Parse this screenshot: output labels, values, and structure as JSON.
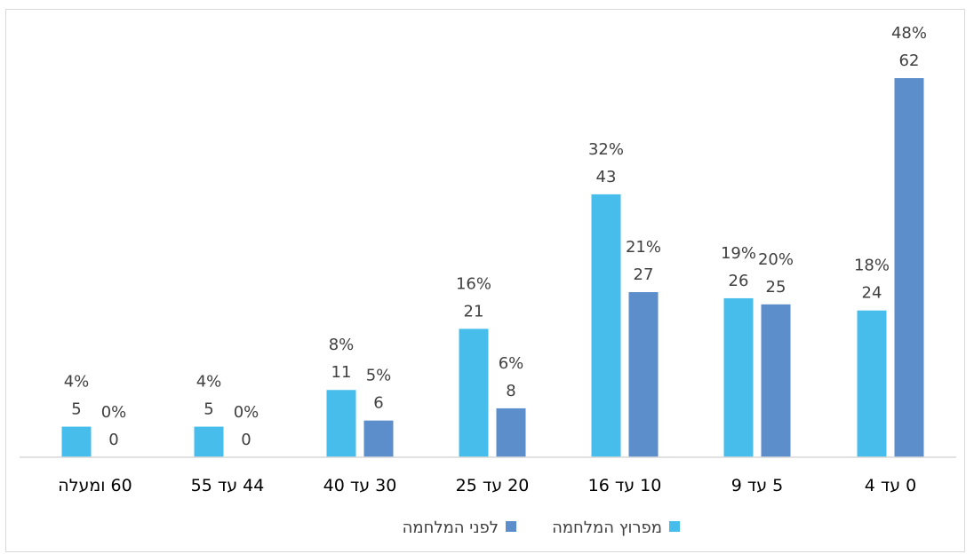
{
  "chart_data": {
    "type": "bar",
    "direction": "rtl",
    "categories": [
      "0 עד 4",
      "5 עד 9",
      "10 עד 16",
      "20 עד 25",
      "30 עד 40",
      "44 עד 55",
      "60 ומעלה"
    ],
    "series": [
      {
        "name": "לפני המלחמה",
        "color": "#5B8ECB",
        "values": [
          62,
          25,
          27,
          8,
          6,
          0,
          0
        ],
        "percent_labels": [
          "48%",
          "20%",
          "21%",
          "6%",
          "5%",
          "0%",
          "0%"
        ]
      },
      {
        "name": "מפרוץ המלחמה",
        "color": "#47BDEC",
        "values": [
          24,
          26,
          43,
          21,
          11,
          5,
          5
        ],
        "percent_labels": [
          "18%",
          "19%",
          "32%",
          "16%",
          "8%",
          "4%",
          "4%"
        ]
      }
    ],
    "ylim": [
      0,
      62
    ],
    "grid": false,
    "legend_position": "bottom"
  }
}
